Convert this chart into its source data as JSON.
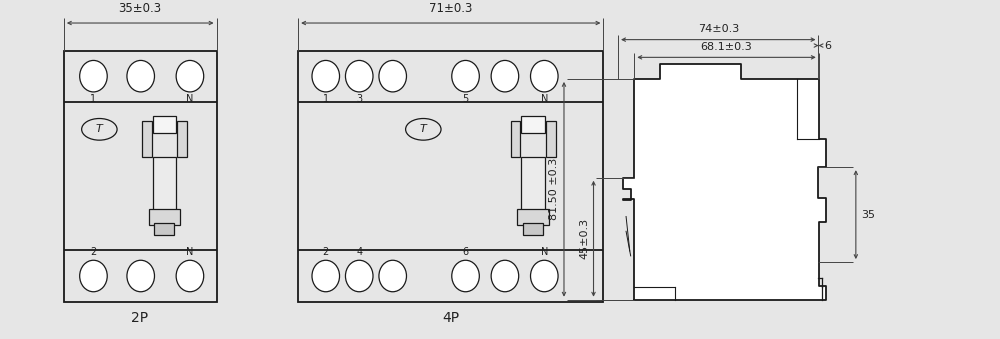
{
  "bg_color": "#e6e6e6",
  "line_color": "#1a1a1a",
  "dim_color": "#444444",
  "text_color": "#222222",
  "label_2p": "2P",
  "label_4p": "4P",
  "dim_2p_width": "35±0.3",
  "dim_4p_width": "71±0.3",
  "dim_side_height": "81.50 ±0.3",
  "dim_side_45": "45±0.3",
  "dim_side_74": "74±0.3",
  "dim_side_68": "68.1±0.3",
  "dim_side_6": "6",
  "dim_side_35": "35"
}
